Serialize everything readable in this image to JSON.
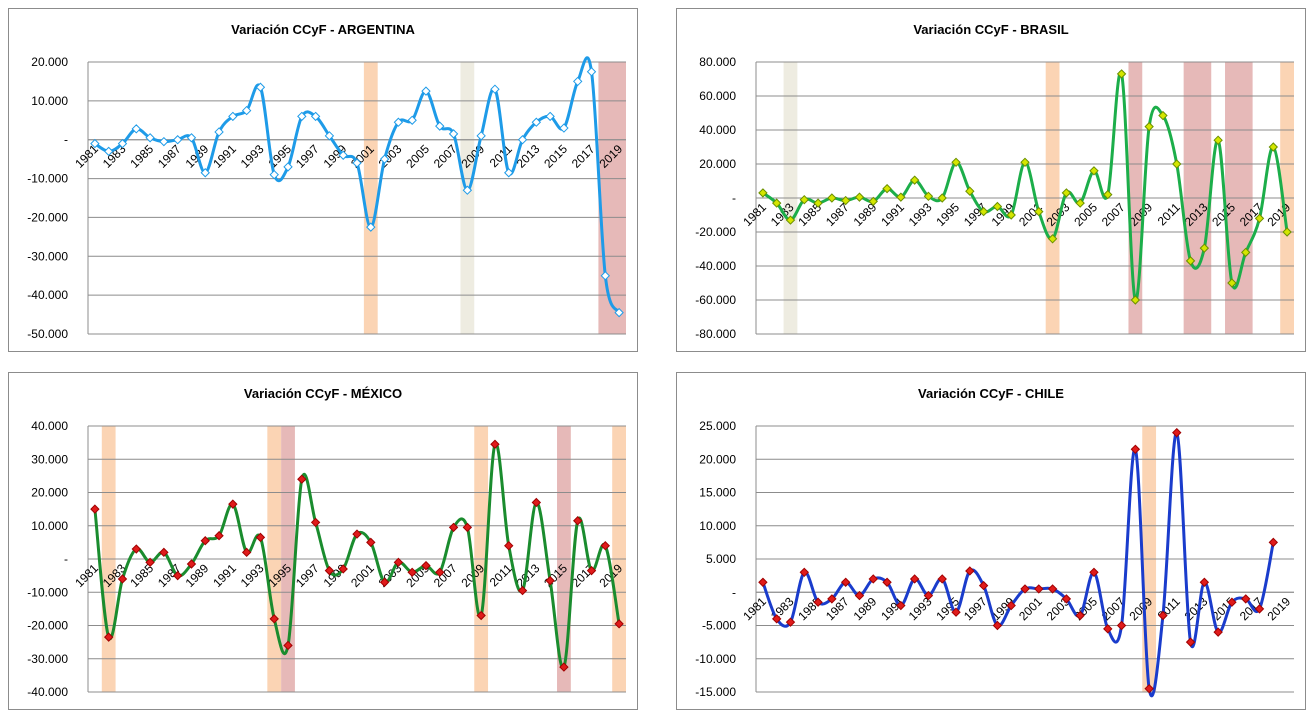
{
  "chart_data": [
    {
      "type": "line",
      "title": "Variación CCyF - ARGENTINA",
      "categories": [
        "1981",
        null,
        "1983",
        null,
        "1985",
        null,
        "1987",
        null,
        "1989",
        null,
        "1991",
        null,
        "1993",
        null,
        "1995",
        null,
        "1997",
        null,
        "1999",
        null,
        "2001",
        null,
        "2003",
        null,
        "2005",
        null,
        "2007",
        null,
        "2009",
        null,
        "2011",
        null,
        "2013",
        null,
        "2015",
        null,
        "2017",
        null,
        "2019"
      ],
      "series": [
        {
          "color": "#1e9be8",
          "marker_fill": "#ffffff",
          "marker_stroke": "#1e9be8",
          "values": [
            -1000,
            -3000,
            -1000,
            2800,
            500,
            -500,
            0,
            500,
            -8500,
            2000,
            6000,
            7500,
            13500,
            -9000,
            -7000,
            6000,
            6000,
            1000,
            -4000,
            -6000,
            -22500,
            -5000,
            4500,
            5000,
            12500,
            3500,
            1500,
            -13000,
            1000,
            13000,
            -8500,
            0,
            4500,
            6000,
            3000,
            15000,
            17500,
            -35000,
            -44500
          ]
        }
      ],
      "ylim": [
        -50000,
        20000
      ],
      "yticks": [
        {
          "value": -50000,
          "label": "-50.000"
        },
        {
          "value": -40000,
          "label": "-40.000"
        },
        {
          "value": -30000,
          "label": "-30.000"
        },
        {
          "value": -20000,
          "label": "-20.000"
        },
        {
          "value": -10000,
          "label": "-10.000"
        },
        {
          "value": 0,
          "label": "-"
        },
        {
          "value": 10000,
          "label": "10.000"
        },
        {
          "value": 20000,
          "label": "20.000"
        }
      ],
      "grid": true,
      "bands": [
        {
          "from": 2001,
          "to": 2001,
          "color": "#fbd4b4"
        },
        {
          "from": 2008,
          "to": 2008,
          "color": "#eeece1"
        },
        {
          "from": 2018,
          "to": 2019,
          "color": "#e6b9b8"
        }
      ]
    },
    {
      "type": "line",
      "title": "Variación CCyF - BRASIL",
      "categories": [
        "1981",
        null,
        "1983",
        null,
        "1985",
        null,
        "1987",
        null,
        "1989",
        null,
        "1991",
        null,
        "1993",
        null,
        "1995",
        null,
        "1997",
        null,
        "1999",
        null,
        "2001",
        null,
        "2003",
        null,
        "2005",
        null,
        "2007",
        null,
        "2009",
        null,
        "2011",
        null,
        "2013",
        null,
        "2015",
        null,
        "2017",
        null,
        "2019"
      ],
      "series": [
        {
          "color": "#1cae4a",
          "marker_fill": "#d4e600",
          "marker_stroke": "#6a8f00",
          "values": [
            3000,
            -3000,
            -13000,
            -1000,
            -3000,
            0,
            -1500,
            500,
            -2000,
            5500,
            500,
            10500,
            1000,
            0,
            21000,
            4000,
            -8000,
            -5000,
            -10000,
            21000,
            -8000,
            -24000,
            3000,
            -3000,
            16000,
            2000,
            73000,
            -60000,
            42000,
            48500,
            20000,
            -37000,
            -29500,
            34000,
            -50000,
            -32000,
            -12000,
            30000,
            -20000
          ]
        }
      ],
      "ylim": [
        -80000,
        80000
      ],
      "yticks": [
        {
          "value": -80000,
          "label": "-80.000"
        },
        {
          "value": -60000,
          "label": "-60.000"
        },
        {
          "value": -40000,
          "label": "-40.000"
        },
        {
          "value": -20000,
          "label": "-20.000"
        },
        {
          "value": 0,
          "label": "-"
        },
        {
          "value": 20000,
          "label": "20.000"
        },
        {
          "value": 40000,
          "label": "40.000"
        },
        {
          "value": 60000,
          "label": "60.000"
        },
        {
          "value": 80000,
          "label": "80.000"
        }
      ],
      "grid": true,
      "bands": [
        {
          "from": 1983,
          "to": 1983,
          "color": "#eeece1"
        },
        {
          "from": 2002,
          "to": 2002,
          "color": "#fbd4b4"
        },
        {
          "from": 2008,
          "to": 2008,
          "color": "#e6b9b8"
        },
        {
          "from": 2012,
          "to": 2013,
          "color": "#e6b9b8"
        },
        {
          "from": 2015,
          "to": 2016,
          "color": "#e6b9b8"
        },
        {
          "from": 2019,
          "to": 2019,
          "color": "#fbd4b4"
        }
      ]
    },
    {
      "type": "line",
      "title": "Variación CCyF - MÉXICO",
      "categories": [
        "1981",
        null,
        "1983",
        null,
        "1985",
        null,
        "1987",
        null,
        "1989",
        null,
        "1991",
        null,
        "1993",
        null,
        "1995",
        null,
        "1997",
        null,
        "1999",
        null,
        "2001",
        null,
        "2003",
        null,
        "2005",
        null,
        "2007",
        null,
        "2009",
        null,
        "2011",
        null,
        "2013",
        null,
        "2015",
        null,
        "2017",
        null,
        "2019"
      ],
      "series": [
        {
          "color": "#1a8c2e",
          "marker_fill": "#e01b1b",
          "marker_stroke": "#a00000",
          "values": [
            15000,
            -23500,
            -6000,
            3000,
            -1000,
            2000,
            -5000,
            -1500,
            5500,
            7000,
            16500,
            2000,
            6500,
            -18000,
            -26000,
            24000,
            11000,
            -3500,
            -3000,
            7500,
            5000,
            -7000,
            -1000,
            -4000,
            -2000,
            -4000,
            9500,
            9500,
            -17000,
            34500,
            4000,
            -9500,
            17000,
            -6500,
            -32500,
            11500,
            -3500,
            4000,
            -19500
          ]
        }
      ],
      "ylim": [
        -40000,
        40000
      ],
      "yticks": [
        {
          "value": -40000,
          "label": "-40.000"
        },
        {
          "value": -30000,
          "label": "-30.000"
        },
        {
          "value": -20000,
          "label": "-20.000"
        },
        {
          "value": -10000,
          "label": "-10.000"
        },
        {
          "value": 0,
          "label": "-"
        },
        {
          "value": 10000,
          "label": "10.000"
        },
        {
          "value": 20000,
          "label": "20.000"
        },
        {
          "value": 30000,
          "label": "30.000"
        },
        {
          "value": 40000,
          "label": "40.000"
        }
      ],
      "grid": true,
      "bands": [
        {
          "from": 1982,
          "to": 1982,
          "color": "#fbd4b4"
        },
        {
          "from": 1994,
          "to": 1994,
          "color": "#fbd4b4"
        },
        {
          "from": 1995,
          "to": 1995,
          "color": "#e6b9b8"
        },
        {
          "from": 2009,
          "to": 2009,
          "color": "#fbd4b4"
        },
        {
          "from": 2015,
          "to": 2015,
          "color": "#e6b9b8"
        },
        {
          "from": 2019,
          "to": 2019,
          "color": "#fbd4b4"
        }
      ]
    },
    {
      "type": "line",
      "title": "Variación CCyF - CHILE",
      "categories": [
        "1981",
        null,
        "1983",
        null,
        "1985",
        null,
        "1987",
        null,
        "1989",
        null,
        "1991",
        null,
        "1993",
        null,
        "1995",
        null,
        "1997",
        null,
        "1999",
        null,
        "2001",
        null,
        "2003",
        null,
        "2005",
        null,
        "2007",
        null,
        "2009",
        null,
        "2011",
        null,
        "2013",
        null,
        "2015",
        null,
        "2017",
        null,
        "2019"
      ],
      "series": [
        {
          "color": "#1a3ccc",
          "marker_fill": "#e01b1b",
          "marker_stroke": "#a00000",
          "values": [
            1500,
            -4000,
            -4500,
            3000,
            -1500,
            -1000,
            1500,
            -500,
            2000,
            1500,
            -2000,
            2000,
            -500,
            2000,
            -3000,
            3200,
            1000,
            -5000,
            -2000,
            500,
            500,
            500,
            -1000,
            -3500,
            3000,
            -5500,
            -5000,
            21500,
            -14500,
            -3500,
            24000,
            -7500,
            1500,
            -6000,
            -1500,
            -1000,
            -2500,
            7500,
            null
          ]
        }
      ],
      "ylim": [
        -15000,
        25000
      ],
      "yticks": [
        {
          "value": -15000,
          "label": "-15.000"
        },
        {
          "value": -10000,
          "label": "-10.000"
        },
        {
          "value": -5000,
          "label": "-5.000"
        },
        {
          "value": 0,
          "label": "-"
        },
        {
          "value": 5000,
          "label": "5.000"
        },
        {
          "value": 10000,
          "label": "10.000"
        },
        {
          "value": 15000,
          "label": "15.000"
        },
        {
          "value": 20000,
          "label": "20.000"
        },
        {
          "value": 25000,
          "label": "25.000"
        }
      ],
      "grid": true,
      "bands": [
        {
          "from": 2009,
          "to": 2009,
          "color": "#fbd4b4"
        }
      ]
    }
  ]
}
